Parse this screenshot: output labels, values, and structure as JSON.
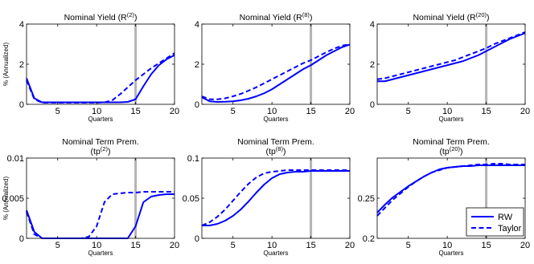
{
  "chart_data": [
    {
      "type": "line",
      "title": "Nominal Yield (R(2))",
      "title_lines": [
        [
          {
            "t": "Nominal Yield (R"
          },
          {
            "t": "(2)",
            "sup": true
          },
          {
            "t": ")"
          }
        ]
      ],
      "xlabel": "Quarters",
      "ylabel": "% (Annualized)",
      "xlim": [
        1,
        20
      ],
      "ylim": [
        0,
        4
      ],
      "xticks": [
        5,
        10,
        15,
        20
      ],
      "yticks": [
        0,
        2,
        4
      ],
      "ytick_labels": [
        "0",
        "2",
        "4"
      ],
      "vline": 15,
      "x": [
        1,
        2,
        3,
        4,
        5,
        6,
        7,
        8,
        9,
        10,
        11,
        12,
        13,
        14,
        15,
        16,
        17,
        18,
        19,
        20
      ],
      "series": [
        {
          "name": "RW",
          "style": "solid",
          "values": [
            1.3,
            0.3,
            0.1,
            0.1,
            0.1,
            0.1,
            0.1,
            0.1,
            0.1,
            0.1,
            0.1,
            0.1,
            0.1,
            0.12,
            0.25,
            0.9,
            1.5,
            1.95,
            2.25,
            2.45
          ]
        },
        {
          "name": "Taylor",
          "style": "dashed",
          "values": [
            1.2,
            0.25,
            0.08,
            0.08,
            0.08,
            0.08,
            0.08,
            0.08,
            0.08,
            0.08,
            0.1,
            0.2,
            0.5,
            0.85,
            1.2,
            1.5,
            1.8,
            2.05,
            2.3,
            2.55
          ]
        }
      ]
    },
    {
      "type": "line",
      "title": "Nominal Yield (R(8))",
      "title_lines": [
        [
          {
            "t": "Nominal Yield (R"
          },
          {
            "t": "(8)",
            "sup": true
          },
          {
            "t": ")"
          }
        ]
      ],
      "xlabel": "Quarters",
      "ylabel": "",
      "xlim": [
        1,
        20
      ],
      "ylim": [
        0,
        4
      ],
      "xticks": [
        5,
        10,
        15,
        20
      ],
      "yticks": [
        0,
        2,
        4
      ],
      "ytick_labels": [
        "0",
        "2",
        "4"
      ],
      "vline": 15,
      "x": [
        1,
        2,
        3,
        4,
        5,
        6,
        7,
        8,
        9,
        10,
        11,
        12,
        13,
        14,
        15,
        16,
        17,
        18,
        19,
        20
      ],
      "series": [
        {
          "name": "RW",
          "style": "solid",
          "values": [
            0.35,
            0.15,
            0.12,
            0.13,
            0.15,
            0.2,
            0.28,
            0.4,
            0.55,
            0.75,
            1.0,
            1.25,
            1.5,
            1.75,
            1.95,
            2.2,
            2.45,
            2.65,
            2.85,
            2.98
          ]
        },
        {
          "name": "Taylor",
          "style": "dashed",
          "values": [
            0.4,
            0.25,
            0.25,
            0.3,
            0.4,
            0.52,
            0.68,
            0.85,
            1.05,
            1.25,
            1.45,
            1.65,
            1.85,
            2.05,
            2.2,
            2.4,
            2.6,
            2.78,
            2.92,
            3.0
          ]
        }
      ]
    },
    {
      "type": "line",
      "title": "Nominal Yield (R(20))",
      "title_lines": [
        [
          {
            "t": "Nominal Yield (R"
          },
          {
            "t": "(20)",
            "sup": true
          },
          {
            "t": ")"
          }
        ]
      ],
      "xlabel": "Quarters",
      "ylabel": "",
      "xlim": [
        1,
        20
      ],
      "ylim": [
        0,
        4
      ],
      "xticks": [
        5,
        10,
        15,
        20
      ],
      "yticks": [
        0,
        2,
        4
      ],
      "ytick_labels": [
        "0",
        "2",
        "4"
      ],
      "vline": 15,
      "x": [
        1,
        2,
        3,
        4,
        5,
        6,
        7,
        8,
        9,
        10,
        11,
        12,
        13,
        14,
        15,
        16,
        17,
        18,
        19,
        20
      ],
      "series": [
        {
          "name": "RW",
          "style": "solid",
          "values": [
            1.15,
            1.15,
            1.25,
            1.35,
            1.45,
            1.55,
            1.65,
            1.75,
            1.85,
            1.95,
            2.05,
            2.15,
            2.3,
            2.45,
            2.65,
            2.85,
            3.05,
            3.25,
            3.4,
            3.55
          ]
        },
        {
          "name": "Taylor",
          "style": "dashed",
          "values": [
            1.25,
            1.3,
            1.4,
            1.5,
            1.6,
            1.7,
            1.8,
            1.9,
            2.0,
            2.1,
            2.2,
            2.35,
            2.5,
            2.65,
            2.8,
            3.0,
            3.15,
            3.3,
            3.45,
            3.6
          ]
        }
      ]
    },
    {
      "type": "line",
      "title": "Nominal Term Prem. (tp(2))",
      "title_lines": [
        [
          {
            "t": "Nominal Term Prem."
          }
        ],
        [
          {
            "t": "(tp"
          },
          {
            "t": "(2)",
            "sup": true
          },
          {
            "t": ")"
          }
        ]
      ],
      "xlabel": "Quarters",
      "ylabel": "% (Annualized)",
      "xlim": [
        1,
        20
      ],
      "ylim": [
        0,
        0.01
      ],
      "xticks": [
        5,
        10,
        15,
        20
      ],
      "yticks": [
        0,
        0.005,
        0.01
      ],
      "ytick_labels": [
        "0",
        "0.005",
        "0.01"
      ],
      "vline": 15,
      "x": [
        1,
        2,
        3,
        4,
        5,
        6,
        7,
        8,
        9,
        10,
        11,
        12,
        13,
        14,
        15,
        16,
        17,
        18,
        19,
        20
      ],
      "series": [
        {
          "name": "RW",
          "style": "solid",
          "values": [
            0.0035,
            0.0008,
            0.0,
            0.0,
            0.0,
            0.0,
            0.0,
            0.0,
            0.0,
            0.0,
            0.0,
            0.0,
            0.0,
            0.0,
            0.0015,
            0.0045,
            0.0052,
            0.0054,
            0.0055,
            0.0055
          ]
        },
        {
          "name": "Taylor",
          "style": "dashed",
          "values": [
            0.0033,
            0.0005,
            0.0,
            0.0,
            0.0,
            0.0,
            0.0,
            0.0,
            0.0002,
            0.0015,
            0.0045,
            0.0055,
            0.0056,
            0.0057,
            0.0057,
            0.0058,
            0.0058,
            0.0058,
            0.0058,
            0.0058
          ]
        }
      ]
    },
    {
      "type": "line",
      "title": "Nominal Term Prem. (tp(8))",
      "title_lines": [
        [
          {
            "t": "Nominal Term Prem."
          }
        ],
        [
          {
            "t": "(tp"
          },
          {
            "t": "(8)",
            "sup": true
          },
          {
            "t": ")"
          }
        ]
      ],
      "xlabel": "Quarters",
      "ylabel": "",
      "xlim": [
        1,
        20
      ],
      "ylim": [
        0,
        0.1
      ],
      "xticks": [
        5,
        10,
        15,
        20
      ],
      "yticks": [
        0,
        0.05,
        0.1
      ],
      "ytick_labels": [
        "0",
        "0.05",
        "0.1"
      ],
      "vline": 15,
      "x": [
        1,
        2,
        3,
        4,
        5,
        6,
        7,
        8,
        9,
        10,
        11,
        12,
        13,
        14,
        15,
        16,
        17,
        18,
        19,
        20
      ],
      "series": [
        {
          "name": "RW",
          "style": "solid",
          "values": [
            0.016,
            0.016,
            0.018,
            0.022,
            0.028,
            0.036,
            0.046,
            0.057,
            0.067,
            0.075,
            0.08,
            0.082,
            0.083,
            0.083,
            0.084,
            0.084,
            0.084,
            0.084,
            0.084,
            0.084
          ]
        },
        {
          "name": "Taylor",
          "style": "dashed",
          "values": [
            0.016,
            0.02,
            0.027,
            0.036,
            0.047,
            0.058,
            0.068,
            0.076,
            0.081,
            0.083,
            0.084,
            0.085,
            0.085,
            0.085,
            0.085,
            0.085,
            0.085,
            0.085,
            0.085,
            0.085
          ]
        }
      ]
    },
    {
      "type": "line",
      "title": "Nominal Term Prem. (tp(20))",
      "title_lines": [
        [
          {
            "t": "Nominal Term Prem."
          }
        ],
        [
          {
            "t": "(tp"
          },
          {
            "t": "(20)",
            "sup": true
          },
          {
            "t": ")"
          }
        ]
      ],
      "xlabel": "Quarters",
      "ylabel": "",
      "xlim": [
        1,
        20
      ],
      "ylim": [
        0.2,
        0.3
      ],
      "xticks": [
        5,
        10,
        15,
        20
      ],
      "yticks": [
        0.2,
        0.25
      ],
      "ytick_labels": [
        "0.2",
        "0.25"
      ],
      "vline": 15,
      "legend": {
        "position": "bottom-right",
        "entries": [
          {
            "name": "RW",
            "style": "solid"
          },
          {
            "name": "Taylor",
            "style": "dashed"
          }
        ]
      },
      "x": [
        1,
        2,
        3,
        4,
        5,
        6,
        7,
        8,
        9,
        10,
        11,
        12,
        13,
        14,
        15,
        16,
        17,
        18,
        19,
        20
      ],
      "series": [
        {
          "name": "RW",
          "style": "solid",
          "values": [
            0.232,
            0.242,
            0.251,
            0.258,
            0.265,
            0.271,
            0.277,
            0.282,
            0.286,
            0.288,
            0.289,
            0.29,
            0.29,
            0.291,
            0.291,
            0.291,
            0.291,
            0.291,
            0.291,
            0.291
          ]
        },
        {
          "name": "Taylor",
          "style": "dashed",
          "values": [
            0.228,
            0.238,
            0.248,
            0.256,
            0.264,
            0.271,
            0.277,
            0.282,
            0.285,
            0.288,
            0.289,
            0.29,
            0.291,
            0.292,
            0.292,
            0.293,
            0.293,
            0.292,
            0.292,
            0.292
          ]
        }
      ]
    }
  ]
}
